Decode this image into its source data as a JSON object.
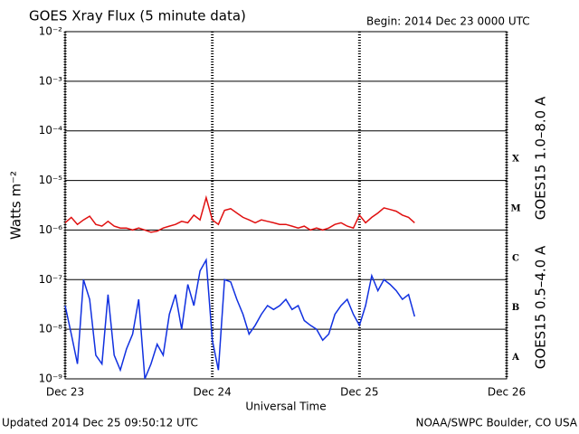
{
  "chart_data": {
    "type": "line",
    "title": "GOES Xray Flux (5 minute data)",
    "subtitle": "Begin:  2014 Dec 23 0000 UTC",
    "x_label": "Universal Time",
    "y_label": "Watts m⁻²",
    "footer_left": "Updated 2014 Dec 25 09:50:12 UTC",
    "footer_right": "NOAA/SWPC Boulder, CO USA",
    "flare_classes": [
      "X",
      "M",
      "C",
      "B",
      "A"
    ],
    "log_y": true,
    "grid": true,
    "xlim": [
      0,
      72
    ],
    "xticks": [
      {
        "value": 0,
        "label": "Dec 23"
      },
      {
        "value": 24,
        "label": "Dec 24"
      },
      {
        "value": 48,
        "label": "Dec 25"
      },
      {
        "value": 72,
        "label": "Dec 26"
      }
    ],
    "ylim": [
      1e-09,
      0.01
    ],
    "yticks": [
      {
        "value": 1e-09,
        "label": "10⁻⁹"
      },
      {
        "value": 1e-08,
        "label": "10⁻⁸"
      },
      {
        "value": 1e-07,
        "label": "10⁻⁷"
      },
      {
        "value": 1e-06,
        "label": "10⁻⁶"
      },
      {
        "value": 1e-05,
        "label": "10⁻⁵"
      },
      {
        "value": 0.0001,
        "label": "10⁻⁴"
      },
      {
        "value": 0.001,
        "label": "10⁻³"
      },
      {
        "value": 0.01,
        "label": "10⁻²"
      }
    ],
    "x": [
      0,
      1,
      2,
      3,
      4,
      5,
      6,
      7,
      8,
      9,
      10,
      11,
      12,
      13,
      14,
      15,
      16,
      17,
      18,
      19,
      20,
      21,
      22,
      23,
      24,
      25,
      26,
      27,
      28,
      29,
      30,
      31,
      32,
      33,
      34,
      35,
      36,
      37,
      38,
      39,
      40,
      41,
      42,
      43,
      44,
      45,
      46,
      47,
      48,
      49,
      50,
      51,
      52,
      53,
      54,
      55,
      56,
      57
    ],
    "series": [
      {
        "name": "GOES15 1.0–8.0 A",
        "color": "#e01010",
        "values": [
          1.4e-06,
          1.8e-06,
          1.3e-06,
          1.6e-06,
          1.9e-06,
          1.3e-06,
          1.2e-06,
          1.5e-06,
          1.2e-06,
          1.1e-06,
          1.1e-06,
          1e-06,
          1.1e-06,
          1e-06,
          9e-07,
          9.5e-07,
          1.1e-06,
          1.2e-06,
          1.3e-06,
          1.5e-06,
          1.4e-06,
          2e-06,
          1.6e-06,
          4.5e-06,
          1.6e-06,
          1.3e-06,
          2.5e-06,
          2.7e-06,
          2.2e-06,
          1.8e-06,
          1.6e-06,
          1.4e-06,
          1.6e-06,
          1.5e-06,
          1.4e-06,
          1.3e-06,
          1.3e-06,
          1.2e-06,
          1.1e-06,
          1.2e-06,
          1e-06,
          1.1e-06,
          1e-06,
          1.1e-06,
          1.3e-06,
          1.4e-06,
          1.2e-06,
          1.1e-06,
          2e-06,
          1.4e-06,
          1.8e-06,
          2.2e-06,
          2.8e-06,
          2.6e-06,
          2.4e-06,
          2e-06,
          1.8e-06,
          1.4e-06
        ]
      },
      {
        "name": "GOES15 0.5–4.0 A",
        "color": "#1030e0",
        "values": [
          3e-08,
          8e-09,
          2e-09,
          1e-07,
          4e-08,
          3e-09,
          2e-09,
          5e-08,
          3e-09,
          1.5e-09,
          4e-09,
          8e-09,
          4e-08,
          1e-09,
          2e-09,
          5e-09,
          3e-09,
          2e-08,
          5e-08,
          1e-08,
          8e-08,
          3e-08,
          1.5e-07,
          2.5e-07,
          6e-09,
          1.5e-09,
          1e-07,
          9e-08,
          4e-08,
          2e-08,
          8e-09,
          1.2e-08,
          2e-08,
          3e-08,
          2.5e-08,
          3e-08,
          4e-08,
          2.5e-08,
          3e-08,
          1.5e-08,
          1.2e-08,
          1e-08,
          6e-09,
          8e-09,
          2e-08,
          3e-08,
          4e-08,
          2e-08,
          1.2e-08,
          3e-08,
          1.2e-07,
          6e-08,
          1e-07,
          8e-08,
          6e-08,
          4e-08,
          5e-08,
          1.8e-08
        ]
      }
    ]
  }
}
